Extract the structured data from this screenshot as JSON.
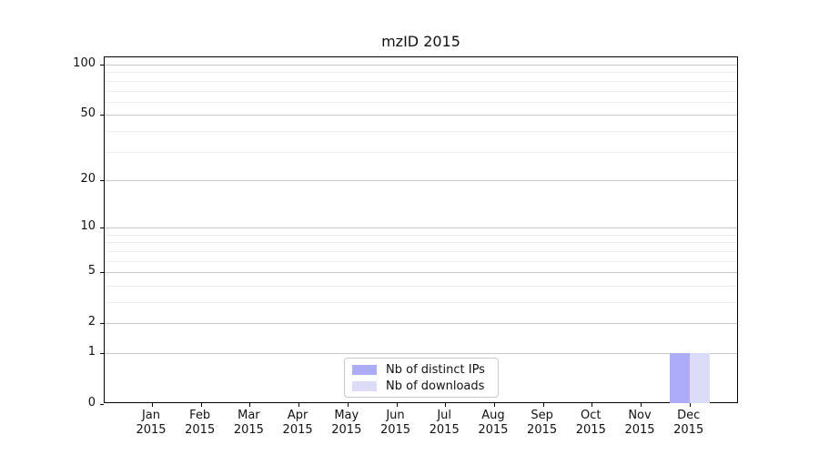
{
  "title": "mzID 2015",
  "chart_data": {
    "type": "bar",
    "title": "mzID 2015",
    "months": [
      "Jan",
      "Feb",
      "Mar",
      "Apr",
      "May",
      "Jun",
      "Jul",
      "Aug",
      "Sep",
      "Oct",
      "Nov",
      "Dec"
    ],
    "year": "2015",
    "categories": [
      "Jan 2015",
      "Feb 2015",
      "Mar 2015",
      "Apr 2015",
      "May 2015",
      "Jun 2015",
      "Jul 2015",
      "Aug 2015",
      "Sep 2015",
      "Oct 2015",
      "Nov 2015",
      "Dec 2015"
    ],
    "series": [
      {
        "name": "Nb of distinct IPs",
        "color": "#acacf8",
        "values": [
          0,
          0,
          0,
          0,
          0,
          0,
          0,
          0,
          0,
          0,
          0,
          1
        ]
      },
      {
        "name": "Nb of downloads",
        "color": "#dcdcf9",
        "values": [
          0,
          0,
          0,
          0,
          0,
          0,
          0,
          0,
          0,
          0,
          0,
          1
        ]
      }
    ],
    "xlabel": "",
    "ylabel": "",
    "yscale": "log1p",
    "ylim": [
      0,
      110
    ],
    "y_ticks": [
      0,
      1,
      2,
      5,
      10,
      20,
      50,
      100
    ],
    "y_minor_ticks": [
      3,
      4,
      6,
      7,
      8,
      9,
      30,
      40,
      60,
      70,
      80,
      90
    ],
    "grid": "horizontal",
    "legend_position": "lower center"
  },
  "colors": {
    "grid_major": "#c8c8c8",
    "grid_minor": "#ededed",
    "axis": "#000000",
    "background": "#ffffff"
  }
}
